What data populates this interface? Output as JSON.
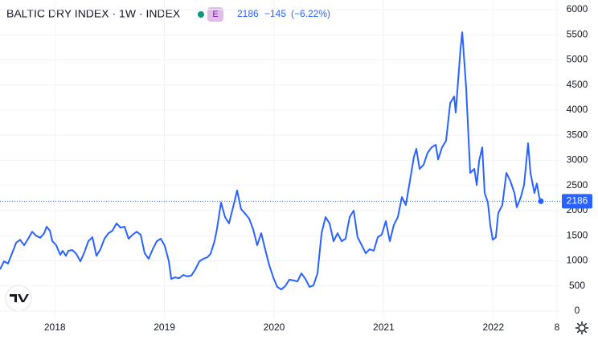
{
  "chart_data": {
    "type": "line",
    "title": "BALTIC DRY INDEX · 1W · INDEX",
    "badge": "E",
    "last_value": 2186,
    "change": "−145",
    "change_percent": "(−6.22%)",
    "x": [
      2017.5,
      2017.537,
      2017.573,
      2017.61,
      2017.647,
      2017.683,
      2017.72,
      2017.757,
      2017.793,
      2017.83,
      2017.867,
      2017.903,
      2017.925,
      2017.955,
      2017.977,
      2018.013,
      2018.05,
      2018.072,
      2018.101,
      2018.123,
      2018.16,
      2018.196,
      2018.233,
      2018.27,
      2018.306,
      2018.343,
      2018.38,
      2018.416,
      2018.453,
      2018.49,
      2018.526,
      2018.563,
      2018.6,
      2018.636,
      2018.673,
      2018.71,
      2018.746,
      2018.783,
      2018.82,
      2018.856,
      2018.893,
      2018.93,
      2018.966,
      2019.003,
      2019.04,
      2019.062,
      2019.098,
      2019.135,
      2019.172,
      2019.208,
      2019.245,
      2019.282,
      2019.318,
      2019.355,
      2019.391,
      2019.421,
      2019.457,
      2019.479,
      2019.516,
      2019.553,
      2019.589,
      2019.626,
      2019.663,
      2019.699,
      2019.736,
      2019.773,
      2019.809,
      2019.846,
      2019.883,
      2019.919,
      2019.956,
      2019.993,
      2020.029,
      2020.066,
      2020.103,
      2020.139,
      2020.176,
      2020.213,
      2020.249,
      2020.286,
      2020.323,
      2020.359,
      2020.396,
      2020.433,
      2020.469,
      2020.506,
      2020.543,
      2020.579,
      2020.616,
      2020.652,
      2020.689,
      2020.726,
      2020.762,
      2020.799,
      2020.836,
      2020.872,
      2020.909,
      2020.946,
      2020.982,
      2021.019,
      2021.056,
      2021.092,
      2021.129,
      2021.166,
      2021.202,
      2021.239,
      2021.276,
      2021.298,
      2021.327,
      2021.364,
      2021.4,
      2021.437,
      2021.474,
      2021.496,
      2021.532,
      2021.569,
      2021.606,
      2021.642,
      2021.657,
      2021.679,
      2021.701,
      2021.716,
      2021.752,
      2021.789,
      2021.826,
      2021.848,
      2021.87,
      2021.899,
      2021.921,
      2021.95,
      2021.972,
      2021.994,
      2022.023,
      2022.045,
      2022.082,
      2022.119,
      2022.155,
      2022.192,
      2022.214,
      2022.251,
      2022.28,
      2022.317,
      2022.339,
      2022.375,
      2022.397,
      2022.419,
      2022.434
    ],
    "series": [
      {
        "name": "BALTIC DRY INDEX",
        "color": "#2962ff",
        "values": [
          830,
          990,
          945,
          1150,
          1360,
          1420,
          1310,
          1440,
          1580,
          1500,
          1460,
          1550,
          1680,
          1600,
          1390,
          1310,
          1120,
          1200,
          1100,
          1200,
          1215,
          1140,
          990,
          1170,
          1390,
          1470,
          1100,
          1230,
          1440,
          1550,
          1600,
          1745,
          1660,
          1680,
          1440,
          1520,
          1580,
          1520,
          1150,
          1040,
          1230,
          1390,
          1440,
          1300,
          990,
          640,
          670,
          655,
          720,
          690,
          705,
          830,
          990,
          1040,
          1070,
          1140,
          1390,
          1630,
          2160,
          1870,
          1745,
          2065,
          2400,
          2030,
          1940,
          1840,
          1630,
          1310,
          1550,
          1230,
          910,
          670,
          480,
          430,
          500,
          625,
          610,
          590,
          750,
          640,
          480,
          510,
          750,
          1550,
          1870,
          1745,
          1390,
          1550,
          1390,
          1440,
          1870,
          2000,
          1470,
          1310,
          1150,
          1230,
          1200,
          1470,
          1520,
          1790,
          1390,
          1710,
          1870,
          2270,
          2110,
          2590,
          3070,
          3230,
          2830,
          2910,
          3150,
          3260,
          3310,
          3020,
          3260,
          3390,
          4140,
          4270,
          3950,
          4590,
          5230,
          5550,
          4430,
          2750,
          2830,
          2510,
          2990,
          3260,
          2350,
          2160,
          1710,
          1420,
          1470,
          1950,
          2110,
          2750,
          2590,
          2350,
          2065,
          2270,
          2510,
          3340,
          2750,
          2350,
          2540,
          2270,
          2186
        ]
      }
    ],
    "xlim": [
      2017.5,
      2022.61
    ],
    "xticks": [
      2018,
      2019,
      2020,
      2021,
      2022,
      {
        "value": 2022.58,
        "label": "8"
      }
    ],
    "ylim": [
      0,
      6000
    ],
    "yticks": [
      0,
      500,
      1000,
      1500,
      2000,
      2500,
      3000,
      3500,
      4000,
      4500,
      5000,
      5500,
      6000
    ],
    "grid": true
  }
}
